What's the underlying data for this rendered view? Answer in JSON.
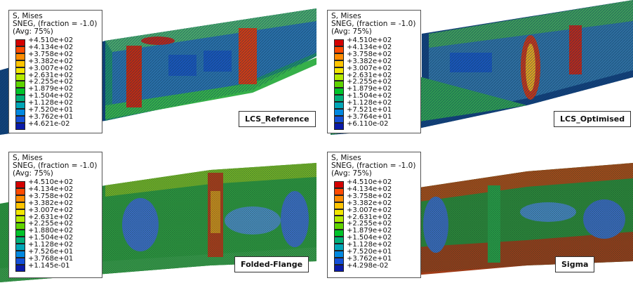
{
  "panels": [
    {
      "name": "LCS_Reference",
      "legend_title": [
        "S, Mises",
        "SNEG, (fraction = -1.0)",
        "(Avg: 75%)"
      ],
      "ticks": [
        "+4.510e+02",
        "+4.134e+02",
        "+3.758e+02",
        "+3.382e+02",
        "+3.007e+02",
        "+2.631e+02",
        "+2.255e+02",
        "+1.879e+02",
        "+1.504e+02",
        "+1.128e+02",
        "+7.520e+01",
        "+3.762e+01",
        "+4.621e-02"
      ]
    },
    {
      "name": "LCS_Optimised",
      "legend_title": [
        "S, Mises",
        "SNEG, (fraction = -1.0)",
        "(Avg: 75%)"
      ],
      "ticks": [
        "+4.510e+02",
        "+4.134e+02",
        "+3.758e+02",
        "+3.382e+02",
        "+3.007e+02",
        "+2.631e+02",
        "+2.255e+02",
        "+1.879e+02",
        "+1.504e+02",
        "+1.128e+02",
        "+7.521e+01",
        "+3.764e+01",
        "+6.110e-02"
      ]
    },
    {
      "name": "Folded-Flange",
      "legend_title": [
        "S, Mises",
        "SNEG, (fraction = -1.0)",
        "(Avg: 75%)"
      ],
      "ticks": [
        "+4.510e+02",
        "+4.134e+02",
        "+3.758e+02",
        "+3.382e+02",
        "+3.007e+02",
        "+2.631e+02",
        "+2.255e+02",
        "+1.880e+02",
        "+1.504e+02",
        "+1.128e+02",
        "+7.526e+01",
        "+3.768e+01",
        "+1.145e-01"
      ]
    },
    {
      "name": "Sigma",
      "legend_title": [
        "S, Mises",
        "SNEG, (fraction = -1.0)",
        "(Avg: 75%)"
      ],
      "ticks": [
        "+4.510e+02",
        "+4.134e+02",
        "+3.758e+02",
        "+3.382e+02",
        "+3.007e+02",
        "+2.631e+02",
        "+2.255e+02",
        "+1.879e+02",
        "+1.504e+02",
        "+1.128e+02",
        "+7.520e+01",
        "+3.762e+01",
        "+4.298e-02"
      ]
    }
  ],
  "colormap": [
    "#d40000",
    "#ff4a00",
    "#ff8c00",
    "#ffc400",
    "#f2e600",
    "#b4ea00",
    "#5fd400",
    "#00c42a",
    "#00b07a",
    "#00a6b8",
    "#0088e0",
    "#1450d8",
    "#0a1aa8"
  ]
}
